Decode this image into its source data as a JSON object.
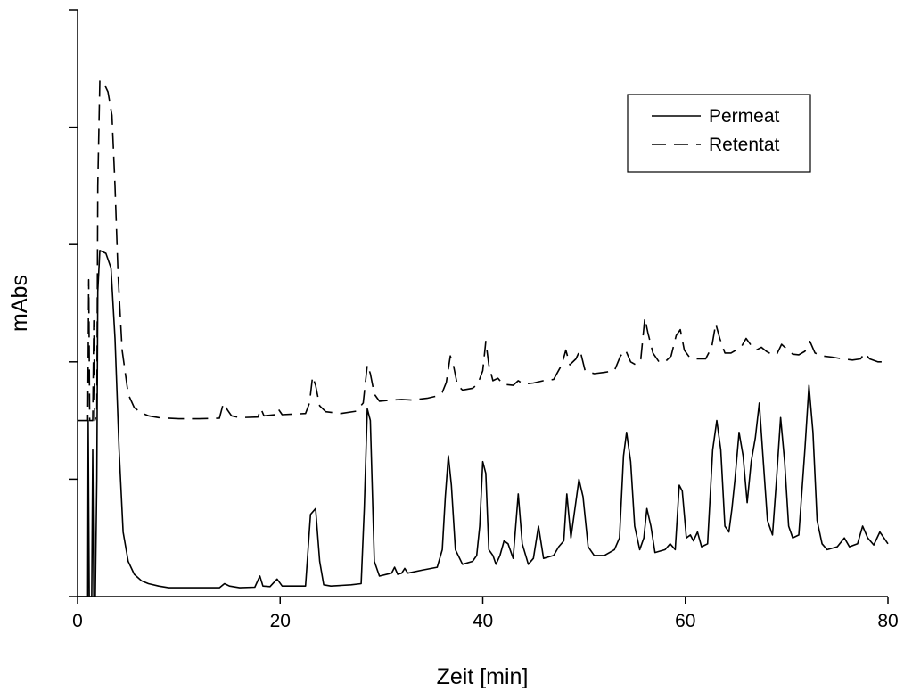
{
  "chart_data": {
    "type": "line",
    "title": "",
    "xlabel": "Zeit [min]",
    "ylabel": "mAbs",
    "xlim": [
      0,
      80
    ],
    "ylim": [
      0,
      1000
    ],
    "x_ticks": [
      "0",
      "20",
      "40",
      "60",
      "80"
    ],
    "y_ticks_labeled": false,
    "grid": false,
    "legend": {
      "position": "top-right",
      "entries": [
        "Permeat",
        "Retentat"
      ]
    },
    "series": [
      {
        "name": "Permeat",
        "style": "solid",
        "color": "#000000",
        "points": [
          [
            0,
            0
          ],
          [
            1.0,
            0
          ],
          [
            1.05,
            300
          ],
          [
            1.15,
            0
          ],
          [
            1.4,
            0
          ],
          [
            1.5,
            250
          ],
          [
            1.6,
            0
          ],
          [
            1.75,
            0
          ],
          [
            1.9,
            200
          ],
          [
            2.0,
            520
          ],
          [
            2.2,
            590
          ],
          [
            2.8,
            585
          ],
          [
            3.3,
            560
          ],
          [
            3.7,
            440
          ],
          [
            4.1,
            250
          ],
          [
            4.5,
            110
          ],
          [
            5.0,
            60
          ],
          [
            5.6,
            38
          ],
          [
            6.3,
            27
          ],
          [
            7.0,
            22
          ],
          [
            8.0,
            18
          ],
          [
            9.0,
            15
          ],
          [
            12.0,
            15
          ],
          [
            14.0,
            15
          ],
          [
            14.5,
            22
          ],
          [
            15.0,
            18
          ],
          [
            16.0,
            15
          ],
          [
            17.5,
            16
          ],
          [
            18.0,
            35
          ],
          [
            18.3,
            18
          ],
          [
            19.0,
            17
          ],
          [
            19.7,
            30
          ],
          [
            20.2,
            18
          ],
          [
            22.5,
            18
          ],
          [
            23.0,
            140
          ],
          [
            23.5,
            150
          ],
          [
            23.9,
            60
          ],
          [
            24.3,
            20
          ],
          [
            25.0,
            18
          ],
          [
            26.0,
            19
          ],
          [
            27.0,
            20
          ],
          [
            28.0,
            22
          ],
          [
            28.3,
            150
          ],
          [
            28.6,
            320
          ],
          [
            28.9,
            300
          ],
          [
            29.3,
            60
          ],
          [
            29.8,
            35
          ],
          [
            31.0,
            40
          ],
          [
            31.3,
            50
          ],
          [
            31.6,
            38
          ],
          [
            32.0,
            40
          ],
          [
            32.3,
            48
          ],
          [
            32.6,
            40
          ],
          [
            34.0,
            45
          ],
          [
            35.5,
            50
          ],
          [
            36.0,
            80
          ],
          [
            36.3,
            170
          ],
          [
            36.6,
            240
          ],
          [
            36.9,
            190
          ],
          [
            37.3,
            80
          ],
          [
            38.0,
            55
          ],
          [
            39.0,
            60
          ],
          [
            39.4,
            70
          ],
          [
            39.7,
            120
          ],
          [
            40.0,
            230
          ],
          [
            40.3,
            210
          ],
          [
            40.6,
            80
          ],
          [
            41.0,
            70
          ],
          [
            41.3,
            55
          ],
          [
            41.7,
            70
          ],
          [
            42.1,
            95
          ],
          [
            42.5,
            90
          ],
          [
            43.0,
            65
          ],
          [
            43.5,
            175
          ],
          [
            43.9,
            90
          ],
          [
            44.5,
            55
          ],
          [
            45.0,
            65
          ],
          [
            45.5,
            120
          ],
          [
            46.0,
            65
          ],
          [
            47.0,
            70
          ],
          [
            47.5,
            85
          ],
          [
            48.0,
            95
          ],
          [
            48.3,
            175
          ],
          [
            48.7,
            100
          ],
          [
            49.1,
            150
          ],
          [
            49.5,
            200
          ],
          [
            49.9,
            170
          ],
          [
            50.4,
            85
          ],
          [
            51.0,
            70
          ],
          [
            52.0,
            70
          ],
          [
            53.0,
            80
          ],
          [
            53.5,
            100
          ],
          [
            53.9,
            240
          ],
          [
            54.2,
            280
          ],
          [
            54.6,
            230
          ],
          [
            55.0,
            120
          ],
          [
            55.5,
            80
          ],
          [
            55.9,
            100
          ],
          [
            56.2,
            150
          ],
          [
            56.6,
            120
          ],
          [
            57.0,
            75
          ],
          [
            58.0,
            80
          ],
          [
            58.5,
            90
          ],
          [
            59.0,
            80
          ],
          [
            59.4,
            190
          ],
          [
            59.7,
            180
          ],
          [
            60.1,
            100
          ],
          [
            60.5,
            105
          ],
          [
            60.8,
            95
          ],
          [
            61.2,
            110
          ],
          [
            61.6,
            85
          ],
          [
            62.2,
            90
          ],
          [
            62.7,
            250
          ],
          [
            63.1,
            300
          ],
          [
            63.5,
            250
          ],
          [
            63.9,
            120
          ],
          [
            64.3,
            110
          ],
          [
            64.6,
            150
          ],
          [
            64.9,
            200
          ],
          [
            65.3,
            280
          ],
          [
            65.7,
            240
          ],
          [
            66.1,
            160
          ],
          [
            66.5,
            230
          ],
          [
            66.9,
            270
          ],
          [
            67.3,
            330
          ],
          [
            67.7,
            230
          ],
          [
            68.1,
            130
          ],
          [
            68.6,
            105
          ],
          [
            69.0,
            200
          ],
          [
            69.4,
            305
          ],
          [
            69.8,
            230
          ],
          [
            70.2,
            120
          ],
          [
            70.6,
            100
          ],
          [
            71.2,
            105
          ],
          [
            71.8,
            250
          ],
          [
            72.2,
            360
          ],
          [
            72.6,
            280
          ],
          [
            73.0,
            130
          ],
          [
            73.5,
            90
          ],
          [
            74.0,
            80
          ],
          [
            75.0,
            85
          ],
          [
            75.7,
            100
          ],
          [
            76.2,
            85
          ],
          [
            77.0,
            90
          ],
          [
            77.5,
            120
          ],
          [
            78.0,
            100
          ],
          [
            78.6,
            88
          ],
          [
            79.2,
            110
          ],
          [
            79.6,
            100
          ],
          [
            80.0,
            90
          ]
        ]
      },
      {
        "name": "Retentat",
        "style": "dashed",
        "color": "#000000",
        "points": [
          [
            0,
            300
          ],
          [
            1.0,
            300
          ],
          [
            1.1,
            540
          ],
          [
            1.2,
            300
          ],
          [
            1.5,
            300
          ],
          [
            1.6,
            470
          ],
          [
            1.7,
            300
          ],
          [
            1.9,
            310
          ],
          [
            2.0,
            700
          ],
          [
            2.2,
            880
          ],
          [
            2.6,
            875
          ],
          [
            3.0,
            860
          ],
          [
            3.4,
            820
          ],
          [
            3.7,
            700
          ],
          [
            4.0,
            550
          ],
          [
            4.4,
            420
          ],
          [
            5.0,
            345
          ],
          [
            5.6,
            322
          ],
          [
            6.3,
            313
          ],
          [
            7.0,
            308
          ],
          [
            8.0,
            305
          ],
          [
            10.0,
            303
          ],
          [
            12.0,
            303
          ],
          [
            14.0,
            304
          ],
          [
            14.4,
            330
          ],
          [
            14.8,
            318
          ],
          [
            15.2,
            308
          ],
          [
            16.0,
            305
          ],
          [
            17.8,
            306
          ],
          [
            18.1,
            320
          ],
          [
            18.4,
            308
          ],
          [
            19.5,
            310
          ],
          [
            19.8,
            320
          ],
          [
            20.2,
            310
          ],
          [
            22.5,
            312
          ],
          [
            22.9,
            330
          ],
          [
            23.2,
            375
          ],
          [
            23.5,
            360
          ],
          [
            23.9,
            325
          ],
          [
            24.5,
            315
          ],
          [
            26.0,
            312
          ],
          [
            27.5,
            316
          ],
          [
            28.2,
            330
          ],
          [
            28.6,
            395
          ],
          [
            28.9,
            380
          ],
          [
            29.3,
            345
          ],
          [
            29.8,
            333
          ],
          [
            31.0,
            335
          ],
          [
            32.0,
            336
          ],
          [
            33.0,
            335
          ],
          [
            34.5,
            338
          ],
          [
            35.5,
            342
          ],
          [
            36.0,
            348
          ],
          [
            36.4,
            365
          ],
          [
            36.8,
            410
          ],
          [
            37.1,
            395
          ],
          [
            37.5,
            360
          ],
          [
            38.0,
            352
          ],
          [
            39.0,
            355
          ],
          [
            39.5,
            362
          ],
          [
            40.0,
            385
          ],
          [
            40.3,
            435
          ],
          [
            40.6,
            395
          ],
          [
            41.0,
            368
          ],
          [
            41.5,
            372
          ],
          [
            42.0,
            362
          ],
          [
            43.0,
            360
          ],
          [
            43.5,
            368
          ],
          [
            44.0,
            362
          ],
          [
            45.0,
            364
          ],
          [
            46.0,
            368
          ],
          [
            47.0,
            370
          ],
          [
            47.8,
            395
          ],
          [
            48.2,
            420
          ],
          [
            48.6,
            395
          ],
          [
            49.2,
            405
          ],
          [
            49.6,
            420
          ],
          [
            50.1,
            385
          ],
          [
            51.0,
            380
          ],
          [
            52.0,
            382
          ],
          [
            53.0,
            385
          ],
          [
            53.6,
            410
          ],
          [
            54.1,
            420
          ],
          [
            54.6,
            400
          ],
          [
            55.1,
            395
          ],
          [
            55.6,
            405
          ],
          [
            56.0,
            475
          ],
          [
            56.3,
            450
          ],
          [
            56.8,
            415
          ],
          [
            57.4,
            400
          ],
          [
            58.0,
            400
          ],
          [
            58.6,
            410
          ],
          [
            59.1,
            445
          ],
          [
            59.5,
            455
          ],
          [
            59.9,
            420
          ],
          [
            60.4,
            408
          ],
          [
            61.0,
            405
          ],
          [
            62.0,
            405
          ],
          [
            62.6,
            425
          ],
          [
            63.0,
            465
          ],
          [
            63.4,
            440
          ],
          [
            63.9,
            415
          ],
          [
            64.5,
            415
          ],
          [
            65.0,
            420
          ],
          [
            65.5,
            425
          ],
          [
            66.0,
            440
          ],
          [
            66.5,
            428
          ],
          [
            67.0,
            420
          ],
          [
            67.5,
            425
          ],
          [
            68.0,
            418
          ],
          [
            68.5,
            413
          ],
          [
            69.0,
            412
          ],
          [
            69.5,
            430
          ],
          [
            70.0,
            422
          ],
          [
            70.6,
            413
          ],
          [
            71.2,
            412
          ],
          [
            71.8,
            418
          ],
          [
            72.3,
            435
          ],
          [
            72.8,
            415
          ],
          [
            73.5,
            410
          ],
          [
            74.5,
            408
          ],
          [
            75.5,
            405
          ],
          [
            76.5,
            403
          ],
          [
            77.3,
            405
          ],
          [
            77.7,
            415
          ],
          [
            78.2,
            405
          ],
          [
            79.0,
            400
          ],
          [
            80.0,
            400
          ]
        ]
      }
    ]
  }
}
